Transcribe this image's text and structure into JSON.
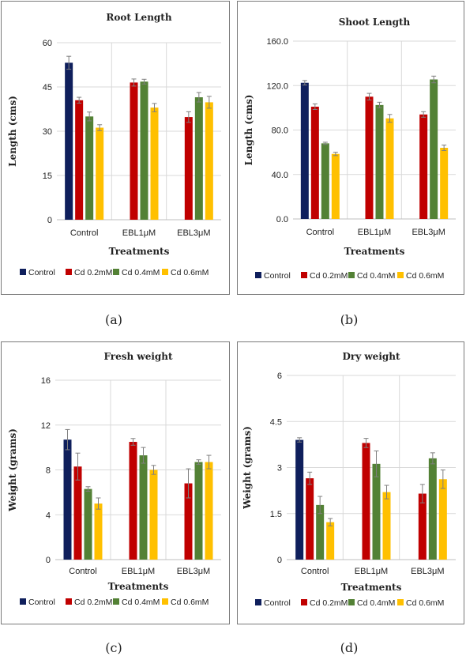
{
  "colors": {
    "Control": "#0f1f5c",
    "Cd 0.2mM": "#c00000",
    "Cd 0.4mM": "#538135",
    "Cd 0.6mM": "#ffc000",
    "grid": "#d9d9d9",
    "errorbar": "#7f7f7f"
  },
  "captions": [
    "(a)",
    "(b)",
    "(c)",
    "(d)"
  ],
  "chart_data": [
    {
      "type": "bar",
      "title": "Root Length",
      "xlabel": "Treatments",
      "ylabel": "Length (cms)",
      "ylim": [
        0,
        60
      ],
      "yticks": [
        "0",
        "15",
        "30",
        "45",
        "60"
      ],
      "categories": [
        "Control",
        "EBL1μM",
        "EBL3μM"
      ],
      "series": [
        {
          "name": "Control",
          "values": [
            53.2,
            null,
            null
          ],
          "errors": [
            2.2,
            null,
            null
          ]
        },
        {
          "name": "Cd 0.2mM",
          "values": [
            40.5,
            46.5,
            34.8
          ],
          "errors": [
            1.0,
            1.2,
            1.8
          ]
        },
        {
          "name": "Cd 0.4mM",
          "values": [
            35.0,
            46.8,
            41.5
          ],
          "errors": [
            1.5,
            0.8,
            1.6
          ]
        },
        {
          "name": "Cd 0.6mM",
          "values": [
            31.2,
            38.0,
            39.8
          ],
          "errors": [
            1.0,
            1.4,
            2.0
          ]
        }
      ],
      "grid": true,
      "legend_position": "bottom"
    },
    {
      "type": "bar",
      "title": "Shoot Length",
      "xlabel": "Treatments",
      "ylabel": "Length (cms)",
      "ylim": [
        0,
        160
      ],
      "yticks": [
        "0.0",
        "40.0",
        "80.0",
        "120.0",
        "160.0"
      ],
      "categories": [
        "Control",
        "EBL1μM",
        "EBL3μM"
      ],
      "series": [
        {
          "name": "Control",
          "values": [
            122.5,
            null,
            null
          ],
          "errors": [
            2.0,
            null,
            null
          ]
        },
        {
          "name": "Cd 0.2mM",
          "values": [
            101.0,
            110.0,
            94.0
          ],
          "errors": [
            2.5,
            3.0,
            2.5
          ]
        },
        {
          "name": "Cd 0.4mM",
          "values": [
            68.0,
            102.5,
            125.5
          ],
          "errors": [
            1.0,
            2.5,
            3.0
          ]
        },
        {
          "name": "Cd 0.6mM",
          "values": [
            58.5,
            90.5,
            64.0
          ],
          "errors": [
            1.5,
            3.5,
            2.5
          ]
        }
      ],
      "grid": true,
      "legend_position": "bottom"
    },
    {
      "type": "bar",
      "title": "Fresh weight",
      "xlabel": "Treatments",
      "ylabel": "Weight (grams)",
      "ylim": [
        0,
        16
      ],
      "yticks": [
        "0",
        "4",
        "8",
        "12",
        "16"
      ],
      "categories": [
        "Control",
        "EBL1μM",
        "EBL3μM"
      ],
      "series": [
        {
          "name": "Control",
          "values": [
            10.7,
            null,
            null
          ],
          "errors": [
            0.9,
            null,
            null
          ]
        },
        {
          "name": "Cd 0.2mM",
          "values": [
            8.3,
            10.5,
            6.8
          ],
          "errors": [
            1.2,
            0.3,
            1.3
          ]
        },
        {
          "name": "Cd 0.4mM",
          "values": [
            6.3,
            9.3,
            8.7
          ],
          "errors": [
            0.2,
            0.7,
            0.2
          ]
        },
        {
          "name": "Cd 0.6mM",
          "values": [
            5.0,
            8.0,
            8.7
          ],
          "errors": [
            0.5,
            0.4,
            0.6
          ]
        }
      ],
      "grid": true,
      "legend_position": "bottom"
    },
    {
      "type": "bar",
      "title": "Dry weight",
      "xlabel": "Treatments",
      "ylabel": "Weight (grams)",
      "ylim": [
        0,
        6
      ],
      "yticks": [
        "0",
        "1.5",
        "3",
        "4.5",
        "6"
      ],
      "categories": [
        "Control",
        "EBL1μM",
        "EBL3μM"
      ],
      "series": [
        {
          "name": "Control",
          "values": [
            3.9,
            null,
            null
          ],
          "errors": [
            0.07,
            null,
            null
          ]
        },
        {
          "name": "Cd 0.2mM",
          "values": [
            2.65,
            3.8,
            2.15
          ],
          "errors": [
            0.2,
            0.15,
            0.3
          ]
        },
        {
          "name": "Cd 0.4mM",
          "values": [
            1.78,
            3.12,
            3.3
          ],
          "errors": [
            0.28,
            0.42,
            0.18
          ]
        },
        {
          "name": "Cd 0.6mM",
          "values": [
            1.22,
            2.2,
            2.62
          ],
          "errors": [
            0.12,
            0.22,
            0.3
          ]
        }
      ],
      "grid": true,
      "legend_position": "bottom"
    }
  ]
}
